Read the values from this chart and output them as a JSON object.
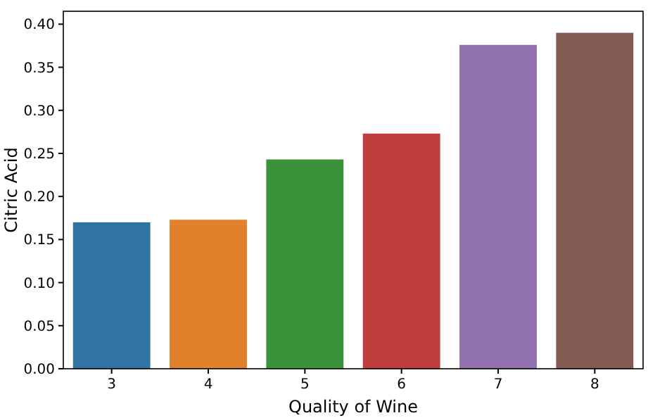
{
  "chart_data": {
    "type": "bar",
    "xlabel": "Quality of Wine",
    "ylabel": "Citric Acid",
    "categories": [
      "3",
      "4",
      "5",
      "6",
      "7",
      "8"
    ],
    "values": [
      0.17,
      0.173,
      0.243,
      0.273,
      0.376,
      0.39
    ],
    "colors": [
      "#3274a1",
      "#e1812c",
      "#3a923a",
      "#c03d3e",
      "#9372b2",
      "#845b53"
    ],
    "ylim": [
      0,
      0.415
    ],
    "yticks": [
      {
        "value": 0,
        "label": "0.00"
      },
      {
        "value": 0.05,
        "label": "0.05"
      },
      {
        "value": 0.1,
        "label": "0.10"
      },
      {
        "value": 0.15,
        "label": "0.15"
      },
      {
        "value": 0.2,
        "label": "0.20"
      },
      {
        "value": 0.25,
        "label": "0.25"
      },
      {
        "value": 0.3,
        "label": "0.30"
      },
      {
        "value": 0.35,
        "label": "0.35"
      },
      {
        "value": 0.4,
        "label": "0.40"
      }
    ]
  }
}
